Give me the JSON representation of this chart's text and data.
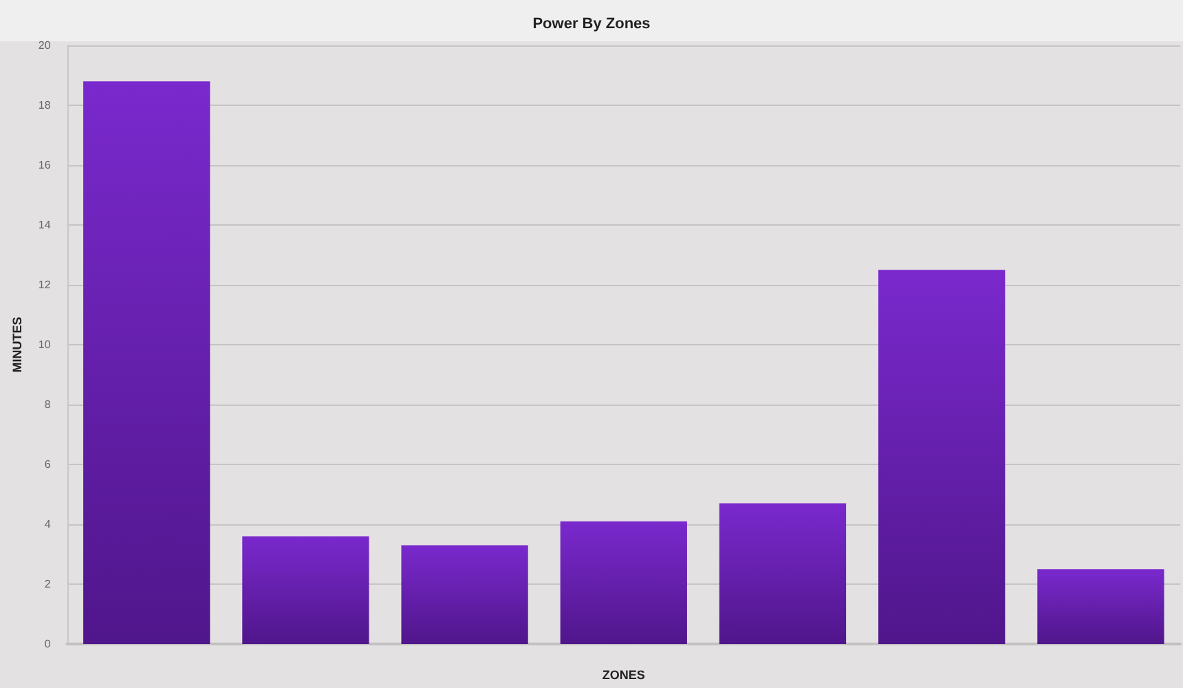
{
  "chart_data": {
    "type": "bar",
    "title": "Power By Zones",
    "xlabel": "ZONES",
    "ylabel": "MINUTES",
    "categories": [
      null,
      null,
      null,
      null,
      null,
      null,
      null
    ],
    "values": [
      18.8,
      3.6,
      3.3,
      4.1,
      4.7,
      12.5,
      2.5
    ],
    "color": "#661cb2",
    "ylim": [
      0,
      20
    ],
    "yticks": [
      0,
      2,
      4,
      6,
      8,
      10,
      12,
      14,
      16,
      18,
      20
    ],
    "grid": "y"
  }
}
